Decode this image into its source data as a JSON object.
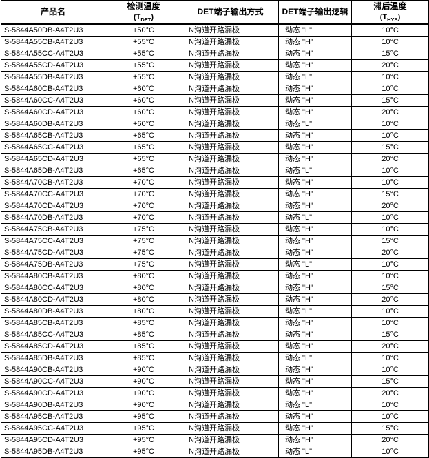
{
  "colors": {
    "border": "#000000",
    "text": "#000000",
    "background": "#ffffff"
  },
  "table": {
    "headers": [
      {
        "id": "product-name",
        "title": "产品名"
      },
      {
        "id": "detection-temp",
        "title": "检测温度",
        "sub": {
          "pre": "(T",
          "sub": "DET",
          "post": ")"
        }
      },
      {
        "id": "det-output-type",
        "title": "DET端子输出方式"
      },
      {
        "id": "det-output-logic",
        "title": "DET端子输出逻辑"
      },
      {
        "id": "hysteresis-temp",
        "title": "滞后温度",
        "sub": {
          "pre": "(T",
          "sub": "HYS",
          "post": ")"
        }
      }
    ],
    "rows": [
      [
        "S-5844A50DB-A4T2U3",
        "+50°C",
        "N沟道开路漏极",
        "动态 \"L\"",
        "10°C"
      ],
      [
        "S-5844A55CB-A4T2U3",
        "+55°C",
        "N沟道开路漏极",
        "动态 \"H\"",
        "10°C"
      ],
      [
        "S-5844A55CC-A4T2U3",
        "+55°C",
        "N沟道开路漏极",
        "动态 \"H\"",
        "15°C"
      ],
      [
        "S-5844A55CD-A4T2U3",
        "+55°C",
        "N沟道开路漏极",
        "动态 \"H\"",
        "20°C"
      ],
      [
        "S-5844A55DB-A4T2U3",
        "+55°C",
        "N沟道开路漏极",
        "动态 \"L\"",
        "10°C"
      ],
      [
        "S-5844A60CB-A4T2U3",
        "+60°C",
        "N沟道开路漏极",
        "动态 \"H\"",
        "10°C"
      ],
      [
        "S-5844A60CC-A4T2U3",
        "+60°C",
        "N沟道开路漏极",
        "动态 \"H\"",
        "15°C"
      ],
      [
        "S-5844A60CD-A4T2U3",
        "+60°C",
        "N沟道开路漏极",
        "动态 \"H\"",
        "20°C"
      ],
      [
        "S-5844A60DB-A4T2U3",
        "+60°C",
        "N沟道开路漏极",
        "动态 \"L\"",
        "10°C"
      ],
      [
        "S-5844A65CB-A4T2U3",
        "+65°C",
        "N沟道开路漏极",
        "动态 \"H\"",
        "10°C"
      ],
      [
        "S-5844A65CC-A4T2U3",
        "+65°C",
        "N沟道开路漏极",
        "动态 \"H\"",
        "15°C"
      ],
      [
        "S-5844A65CD-A4T2U3",
        "+65°C",
        "N沟道开路漏极",
        "动态 \"H\"",
        "20°C"
      ],
      [
        "S-5844A65DB-A4T2U3",
        "+65°C",
        "N沟道开路漏极",
        "动态 \"L\"",
        "10°C"
      ],
      [
        "S-5844A70CB-A4T2U3",
        "+70°C",
        "N沟道开路漏极",
        "动态 \"H\"",
        "10°C"
      ],
      [
        "S-5844A70CC-A4T2U3",
        "+70°C",
        "N沟道开路漏极",
        "动态 \"H\"",
        "15°C"
      ],
      [
        "S-5844A70CD-A4T2U3",
        "+70°C",
        "N沟道开路漏极",
        "动态 \"H\"",
        "20°C"
      ],
      [
        "S-5844A70DB-A4T2U3",
        "+70°C",
        "N沟道开路漏极",
        "动态 \"L\"",
        "10°C"
      ],
      [
        "S-5844A75CB-A4T2U3",
        "+75°C",
        "N沟道开路漏极",
        "动态 \"H\"",
        "10°C"
      ],
      [
        "S-5844A75CC-A4T2U3",
        "+75°C",
        "N沟道开路漏极",
        "动态 \"H\"",
        "15°C"
      ],
      [
        "S-5844A75CD-A4T2U3",
        "+75°C",
        "N沟道开路漏极",
        "动态 \"H\"",
        "20°C"
      ],
      [
        "S-5844A75DB-A4T2U3",
        "+75°C",
        "N沟道开路漏极",
        "动态 \"L\"",
        "10°C"
      ],
      [
        "S-5844A80CB-A4T2U3",
        "+80°C",
        "N沟道开路漏极",
        "动态 \"H\"",
        "10°C"
      ],
      [
        "S-5844A80CC-A4T2U3",
        "+80°C",
        "N沟道开路漏极",
        "动态 \"H\"",
        "15°C"
      ],
      [
        "S-5844A80CD-A4T2U3",
        "+80°C",
        "N沟道开路漏极",
        "动态 \"H\"",
        "20°C"
      ],
      [
        "S-5844A80DB-A4T2U3",
        "+80°C",
        "N沟道开路漏极",
        "动态 \"L\"",
        "10°C"
      ],
      [
        "S-5844A85CB-A4T2U3",
        "+85°C",
        "N沟道开路漏极",
        "动态 \"H\"",
        "10°C"
      ],
      [
        "S-5844A85CC-A4T2U3",
        "+85°C",
        "N沟道开路漏极",
        "动态 \"H\"",
        "15°C"
      ],
      [
        "S-5844A85CD-A4T2U3",
        "+85°C",
        "N沟道开路漏极",
        "动态 \"H\"",
        "20°C"
      ],
      [
        "S-5844A85DB-A4T2U3",
        "+85°C",
        "N沟道开路漏极",
        "动态 \"L\"",
        "10°C"
      ],
      [
        "S-5844A90CB-A4T2U3",
        "+90°C",
        "N沟道开路漏极",
        "动态 \"H\"",
        "10°C"
      ],
      [
        "S-5844A90CC-A4T2U3",
        "+90°C",
        "N沟道开路漏极",
        "动态 \"H\"",
        "15°C"
      ],
      [
        "S-5844A90CD-A4T2U3",
        "+90°C",
        "N沟道开路漏极",
        "动态 \"H\"",
        "20°C"
      ],
      [
        "S-5844A90DB-A4T2U3",
        "+90°C",
        "N沟道开路漏极",
        "动态 \"L\"",
        "10°C"
      ],
      [
        "S-5844A95CB-A4T2U3",
        "+95°C",
        "N沟道开路漏极",
        "动态 \"H\"",
        "10°C"
      ],
      [
        "S-5844A95CC-A4T2U3",
        "+95°C",
        "N沟道开路漏极",
        "动态 \"H\"",
        "15°C"
      ],
      [
        "S-5844A95CD-A4T2U3",
        "+95°C",
        "N沟道开路漏极",
        "动态 \"H\"",
        "20°C"
      ],
      [
        "S-5844A95DB-A4T2U3",
        "+95°C",
        "N沟道开路漏极",
        "动态 \"L\"",
        "10°C"
      ]
    ]
  }
}
